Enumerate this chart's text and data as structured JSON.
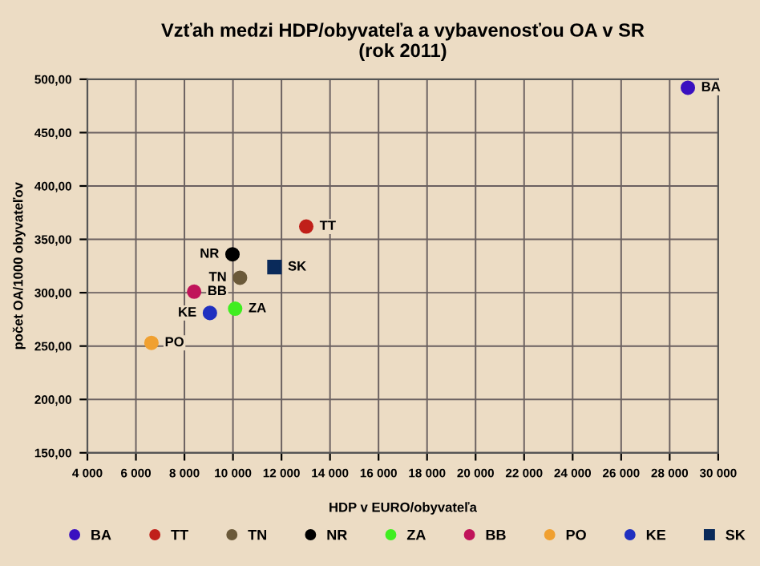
{
  "chart_data": {
    "type": "scatter",
    "title": "Vzťah medzi HDP/obyvateľa a vybavenosťou OA v SR\n(rok 2011)",
    "xlabel": "HDP v EURO/obyvateľa",
    "ylabel": "počet OA/1000 obyvateľov",
    "series": [
      {
        "name": "BA",
        "color": "#3a10c0",
        "x": [
          28750
        ],
        "values": [
          492
        ]
      },
      {
        "name": "TT",
        "color": "#c0201a",
        "x": [
          13020
        ],
        "values": [
          362
        ]
      },
      {
        "name": "TN",
        "color": "#6b5a3a",
        "x": [
          10290
        ],
        "values": [
          314
        ]
      },
      {
        "name": "NR",
        "color": "#000000",
        "x": [
          9980
        ],
        "values": [
          336
        ]
      },
      {
        "name": "ZA",
        "color": "#40ee20",
        "x": [
          10090
        ],
        "values": [
          285
        ]
      },
      {
        "name": "BB",
        "color": "#c0145a",
        "x": [
          8400
        ],
        "values": [
          301
        ]
      },
      {
        "name": "PO",
        "color": "#f0a030",
        "x": [
          6640
        ],
        "values": [
          253
        ]
      },
      {
        "name": "KE",
        "color": "#2030c0",
        "x": [
          9050
        ],
        "values": [
          281
        ]
      },
      {
        "name": "SK",
        "color": "#0a2a5a",
        "x": [
          11710
        ],
        "values": [
          324
        ],
        "marker": "square"
      }
    ],
    "marker": "circle",
    "xlim": [
      4000,
      30000
    ],
    "xticks": [
      {
        "value": 4000,
        "label": "4 000"
      },
      {
        "value": 6000,
        "label": "6 000"
      },
      {
        "value": 8000,
        "label": "8 000"
      },
      {
        "value": 10000,
        "label": "10 000"
      },
      {
        "value": 12000,
        "label": "12 000"
      },
      {
        "value": 14000,
        "label": "14 000"
      },
      {
        "value": 16000,
        "label": "16 000"
      },
      {
        "value": 18000,
        "label": "18 000"
      },
      {
        "value": 20000,
        "label": "20 000"
      },
      {
        "value": 22000,
        "label": "22 000"
      },
      {
        "value": 24000,
        "label": "24 000"
      },
      {
        "value": 26000,
        "label": "26 000"
      },
      {
        "value": 28000,
        "label": "28 000"
      },
      {
        "value": 30000,
        "label": "30 000"
      }
    ],
    "ylim": [
      150,
      500
    ],
    "yticks": [
      {
        "value": 150,
        "label": "150,00"
      },
      {
        "value": 200,
        "label": "200,00"
      },
      {
        "value": 250,
        "label": "250,00"
      },
      {
        "value": 300,
        "label": "300,00"
      },
      {
        "value": 350,
        "label": "350,00"
      },
      {
        "value": 400,
        "label": "400,00"
      },
      {
        "value": 450,
        "label": "450,00"
      },
      {
        "value": 500,
        "label": "500,00"
      }
    ],
    "grid": true,
    "legend": "bottom"
  }
}
